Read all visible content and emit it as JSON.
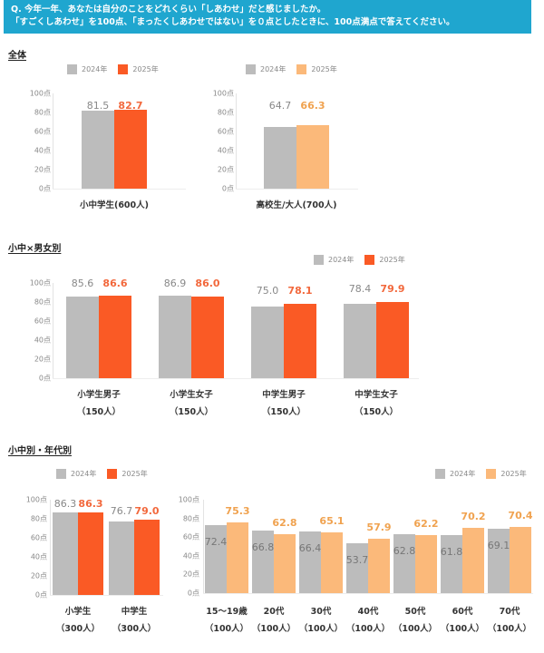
{
  "header": {
    "line1": "Q. 今年一年、あなたは自分のことをどれくらい「しあわせ」だと感じましたか。",
    "line2": "「すごくしあわせ」を100点、「まったくしあわせではない」を０点としたときに、100点満点で答えてください。"
  },
  "colors": {
    "banner": "#1fa6cf",
    "gray_2024": "#bcbcbc",
    "orange_2025": "#fa5a25",
    "light_orange_2025": "#fbb97a"
  },
  "legend": {
    "y2024": "2024年",
    "y2025": "2025年"
  },
  "y_ticks": [
    "100点",
    "80点",
    "60点",
    "40点",
    "20点",
    "0点"
  ],
  "sections": {
    "overall": {
      "title": "全体"
    },
    "gender": {
      "title": "小中×男女別"
    },
    "age": {
      "title": "小中別・年代別"
    }
  },
  "chart_data": [
    {
      "type": "bar",
      "title": "全体 (小中学生)",
      "categories": [
        "小中学生(600人)"
      ],
      "series": [
        {
          "name": "2024年",
          "values": [
            81.5
          ]
        },
        {
          "name": "2025年",
          "values": [
            82.7
          ]
        }
      ],
      "ylabel": "点",
      "ylim": [
        0,
        100
      ],
      "y_ticks": [
        "0点",
        "20点",
        "40点",
        "60点",
        "80点",
        "100点"
      ],
      "legend_position": "top"
    },
    {
      "type": "bar",
      "title": "全体 (高校生/大人)",
      "categories": [
        "高校生/大人(700人)"
      ],
      "series": [
        {
          "name": "2024年",
          "values": [
            64.7
          ]
        },
        {
          "name": "2025年",
          "values": [
            66.3
          ]
        }
      ],
      "ylabel": "点",
      "ylim": [
        0,
        100
      ],
      "y_ticks": [
        "0点",
        "20点",
        "40点",
        "60点",
        "80点",
        "100点"
      ],
      "legend_position": "top"
    },
    {
      "type": "bar",
      "title": "小中×男女別",
      "categories": [
        "小学生男子（150人）",
        "小学生女子（150人）",
        "中学生男子（150人）",
        "中学生女子（150人）"
      ],
      "category_lines": [
        [
          "小学生男子",
          "（150人）"
        ],
        [
          "小学生女子",
          "（150人）"
        ],
        [
          "中学生男子",
          "（150人）"
        ],
        [
          "中学生女子",
          "（150人）"
        ]
      ],
      "series": [
        {
          "name": "2024年",
          "values": [
            85.6,
            86.9,
            75.0,
            78.4
          ]
        },
        {
          "name": "2025年",
          "values": [
            86.6,
            86.0,
            78.1,
            79.9
          ]
        }
      ],
      "value_labels": {
        "2024年": [
          "85.6",
          "86.9",
          "75.0",
          "78.4"
        ],
        "2025年": [
          "86.6",
          "86.0",
          "78.1",
          "79.9"
        ]
      },
      "ylabel": "点",
      "ylim": [
        0,
        100
      ],
      "legend_position": "top-right"
    },
    {
      "type": "bar",
      "title": "小中別",
      "categories": [
        "小学生（300人）",
        "中学生（300人）"
      ],
      "category_lines": [
        [
          "小学生",
          "（300人）"
        ],
        [
          "中学生",
          "（300人）"
        ]
      ],
      "series": [
        {
          "name": "2024年",
          "values": [
            86.3,
            76.7
          ]
        },
        {
          "name": "2025年",
          "values": [
            86.3,
            79.0
          ]
        }
      ],
      "value_labels": {
        "2024年": [
          "86.3",
          "76.7"
        ],
        "2025年": [
          "86.3",
          "79.0"
        ]
      },
      "ylabel": "点",
      "ylim": [
        0,
        100
      ],
      "legend_position": "top"
    },
    {
      "type": "bar",
      "title": "年代別",
      "categories": [
        "15〜19歳（100人）",
        "20代（100人）",
        "30代（100人）",
        "40代（100人）",
        "50代（100人）",
        "60代（100人）",
        "70代（100人）"
      ],
      "category_lines": [
        [
          "15〜19歳",
          "（100人）"
        ],
        [
          "20代",
          "（100人）"
        ],
        [
          "30代",
          "（100人）"
        ],
        [
          "40代",
          "（100人）"
        ],
        [
          "50代",
          "（100人）"
        ],
        [
          "60代",
          "（100人）"
        ],
        [
          "70代",
          "（100人）"
        ]
      ],
      "series": [
        {
          "name": "2024年",
          "values": [
            72.4,
            66.8,
            66.4,
            53.7,
            62.8,
            61.8,
            69.1
          ]
        },
        {
          "name": "2025年",
          "values": [
            75.3,
            62.8,
            65.1,
            57.9,
            62.2,
            70.2,
            70.4
          ]
        }
      ],
      "value_labels": {
        "2024年": [
          "72.4",
          "66.8",
          "66.4",
          "53.7",
          "62.8",
          "61.8",
          "69.1"
        ],
        "2025年": [
          "75.3",
          "62.8",
          "65.1",
          "57.9",
          "62.2",
          "70.2",
          "70.4"
        ]
      },
      "ylabel": "点",
      "ylim": [
        0,
        100
      ],
      "legend_position": "top-right"
    }
  ]
}
